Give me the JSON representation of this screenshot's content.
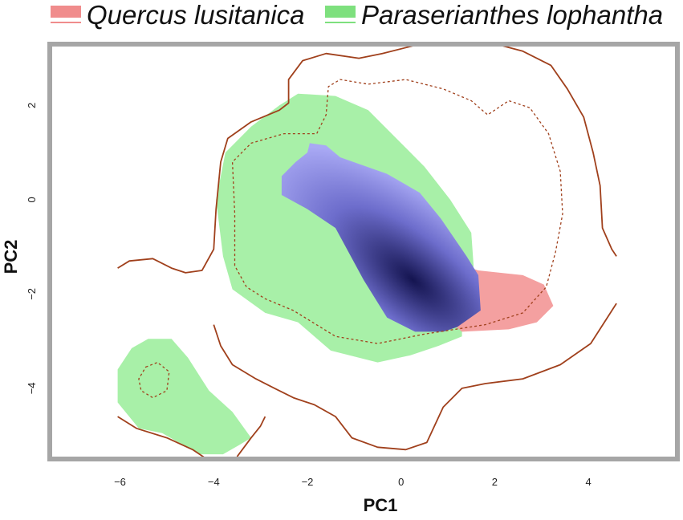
{
  "chart_data": {
    "type": "contour-density",
    "xlabel": "PC1",
    "ylabel": "PC2",
    "xlim": [
      -7.5,
      5.9
    ],
    "ylim": [
      -5.5,
      3.3
    ],
    "xticks": [
      -6,
      -4,
      -2,
      0,
      2,
      4
    ],
    "yticks": [
      -4,
      -2,
      0,
      2
    ],
    "legend_placement": "top",
    "legend": [
      {
        "label": "Quercus lusitanica",
        "color": "#f08c8c"
      },
      {
        "label": "Paraserianthes lophantha",
        "color": "#7ee07e"
      }
    ],
    "colors": {
      "quercus_fill": "#f4a0a0",
      "paraserianthes_fill": "#a8f0a8",
      "overlap_light": "#a9a9f4",
      "overlap_dark": "#141450",
      "contour": "#a0401c",
      "frame": "#a6a6a6"
    },
    "regions": {
      "paraserianthes_main": [
        [
          -2.2,
          2.25
        ],
        [
          -1.4,
          2.2
        ],
        [
          -0.7,
          1.9
        ],
        [
          -0.1,
          1.3
        ],
        [
          0.5,
          0.7
        ],
        [
          1.05,
          0.0
        ],
        [
          1.5,
          -0.7
        ],
        [
          1.55,
          -1.4
        ],
        [
          1.3,
          -2.5
        ],
        [
          1.3,
          -2.9
        ],
        [
          0.8,
          -3.1
        ],
        [
          0.2,
          -3.3
        ],
        [
          -0.5,
          -3.45
        ],
        [
          -1.5,
          -3.2
        ],
        [
          -2.2,
          -2.6
        ],
        [
          -2.9,
          -2.4
        ],
        [
          -3.6,
          -1.9
        ],
        [
          -3.8,
          -1.2
        ],
        [
          -3.95,
          0.0
        ],
        [
          -3.75,
          1.0
        ],
        [
          -3.2,
          1.55
        ],
        [
          -2.6,
          2.0
        ]
      ],
      "paraserianthes_small": [
        [
          -6.05,
          -3.6
        ],
        [
          -5.75,
          -3.15
        ],
        [
          -5.4,
          -2.95
        ],
        [
          -4.9,
          -2.95
        ],
        [
          -4.55,
          -3.35
        ],
        [
          -4.1,
          -4.05
        ],
        [
          -3.6,
          -4.5
        ],
        [
          -3.2,
          -5.05
        ],
        [
          -3.45,
          -5.2
        ],
        [
          -3.8,
          -5.4
        ],
        [
          -4.3,
          -5.4
        ],
        [
          -5.1,
          -4.95
        ],
        [
          -5.6,
          -4.85
        ],
        [
          -6.05,
          -4.3
        ]
      ],
      "quercus": [
        [
          1.2,
          -1.35
        ],
        [
          1.65,
          -1.5
        ],
        [
          2.6,
          -1.6
        ],
        [
          3.05,
          -1.8
        ],
        [
          3.25,
          -2.25
        ],
        [
          2.9,
          -2.6
        ],
        [
          2.3,
          -2.75
        ],
        [
          1.3,
          -2.8
        ],
        [
          1.0,
          -2.55
        ],
        [
          1.1,
          -1.9
        ]
      ],
      "overlap": [
        [
          -1.95,
          1.2
        ],
        [
          -1.6,
          1.15
        ],
        [
          -1.3,
          0.9
        ],
        [
          -0.3,
          0.55
        ],
        [
          0.4,
          0.15
        ],
        [
          0.85,
          -0.4
        ],
        [
          1.4,
          -1.2
        ],
        [
          1.65,
          -1.6
        ],
        [
          1.7,
          -2.35
        ],
        [
          1.2,
          -2.7
        ],
        [
          0.9,
          -2.8
        ],
        [
          0.3,
          -2.8
        ],
        [
          -0.3,
          -2.5
        ],
        [
          -0.8,
          -1.7
        ],
        [
          -1.4,
          -0.6
        ],
        [
          -2.0,
          -0.2
        ],
        [
          -2.55,
          0.1
        ],
        [
          -2.55,
          0.5
        ],
        [
          -2.25,
          0.8
        ],
        [
          -2.0,
          1.0
        ]
      ],
      "overlap_peak": [
        0.25,
        -1.7
      ],
      "contour_outer_main": [
        [
          -6.05,
          -1.45
        ],
        [
          -5.8,
          -1.3
        ],
        [
          -5.3,
          -1.25
        ],
        [
          -4.9,
          -1.45
        ],
        [
          -4.6,
          -1.55
        ],
        [
          -4.25,
          -1.5
        ],
        [
          -4.0,
          -1.05
        ],
        [
          -3.95,
          -0.2
        ],
        [
          -3.85,
          0.8
        ],
        [
          -3.7,
          1.3
        ],
        [
          -3.2,
          1.65
        ],
        [
          -2.6,
          1.9
        ],
        [
          -2.4,
          2.05
        ],
        [
          -2.4,
          2.55
        ],
        [
          -2.1,
          2.95
        ],
        [
          -1.6,
          3.1
        ],
        [
          -0.9,
          3.0
        ],
        [
          -0.4,
          3.1
        ],
        [
          0.4,
          3.3
        ],
        [
          0.95,
          3.35
        ],
        [
          1.3,
          3.38
        ],
        [
          1.85,
          3.35
        ],
        [
          2.6,
          3.15
        ],
        [
          3.2,
          2.85
        ],
        [
          3.55,
          2.35
        ],
        [
          3.9,
          1.75
        ],
        [
          4.1,
          1.0
        ],
        [
          4.25,
          0.3
        ],
        [
          4.3,
          -0.6
        ],
        [
          4.5,
          -1.05
        ],
        [
          4.6,
          -1.2
        ]
      ],
      "contour_outer_lower": [
        [
          -4.0,
          -2.65
        ],
        [
          -3.85,
          -3.1
        ],
        [
          -3.6,
          -3.5
        ],
        [
          -3.1,
          -3.8
        ],
        [
          -2.7,
          -4.0
        ],
        [
          -2.3,
          -4.2
        ],
        [
          -1.85,
          -4.35
        ],
        [
          -1.4,
          -4.6
        ],
        [
          -1.05,
          -5.05
        ],
        [
          -0.5,
          -5.25
        ],
        [
          0.1,
          -5.3
        ],
        [
          0.55,
          -5.15
        ],
        [
          0.9,
          -4.4
        ],
        [
          1.3,
          -4.0
        ],
        [
          1.8,
          -3.9
        ],
        [
          2.6,
          -3.8
        ],
        [
          3.4,
          -3.5
        ],
        [
          4.05,
          -3.05
        ],
        [
          4.6,
          -2.2
        ]
      ],
      "contour_outer_small": [
        [
          -6.05,
          -4.6
        ],
        [
          -5.65,
          -4.85
        ],
        [
          -5.0,
          -5.05
        ],
        [
          -4.45,
          -5.3
        ],
        [
          -4.15,
          -5.5
        ]
      ],
      "contour_outer_small_right": [
        [
          -3.5,
          -5.45
        ],
        [
          -3.2,
          -5.05
        ],
        [
          -3.0,
          -4.8
        ],
        [
          -2.9,
          -4.6
        ]
      ],
      "contour_inner_main": [
        [
          -3.55,
          -1.4
        ],
        [
          -3.55,
          -0.3
        ],
        [
          -3.6,
          0.8
        ],
        [
          -3.2,
          1.2
        ],
        [
          -2.5,
          1.4
        ],
        [
          -1.8,
          1.4
        ],
        [
          -1.6,
          1.8
        ],
        [
          -1.55,
          2.4
        ],
        [
          -1.3,
          2.55
        ],
        [
          -0.7,
          2.45
        ],
        [
          0.1,
          2.55
        ],
        [
          0.9,
          2.35
        ],
        [
          1.5,
          2.1
        ],
        [
          1.85,
          1.8
        ],
        [
          2.3,
          2.1
        ],
        [
          2.75,
          1.95
        ],
        [
          3.15,
          1.4
        ],
        [
          3.4,
          0.6
        ],
        [
          3.45,
          -0.3
        ],
        [
          3.3,
          -1.1
        ],
        [
          3.1,
          -1.85
        ],
        [
          2.6,
          -2.4
        ],
        [
          1.8,
          -2.65
        ],
        [
          0.5,
          -2.85
        ],
        [
          -0.5,
          -3.05
        ],
        [
          -1.4,
          -2.9
        ],
        [
          -2.3,
          -2.35
        ],
        [
          -2.9,
          -2.1
        ],
        [
          -3.3,
          -1.85
        ]
      ],
      "contour_inner_small": [
        [
          -5.45,
          -3.55
        ],
        [
          -5.2,
          -3.45
        ],
        [
          -4.95,
          -3.65
        ],
        [
          -5.0,
          -4.05
        ],
        [
          -5.3,
          -4.2
        ],
        [
          -5.55,
          -4.05
        ],
        [
          -5.6,
          -3.8
        ]
      ]
    }
  }
}
